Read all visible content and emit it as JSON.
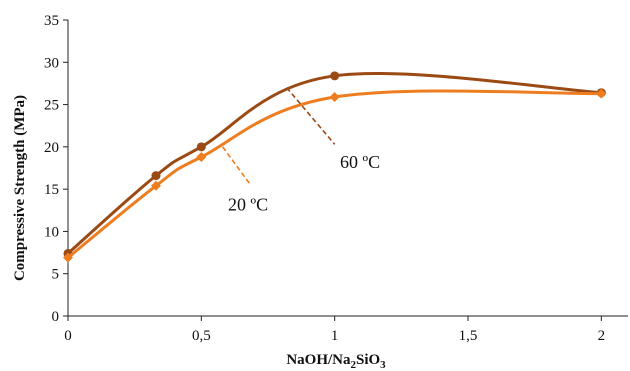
{
  "chart_data": {
    "type": "line",
    "xlabel": {
      "prefix": "NaOH/Na",
      "sub1": "2",
      "mid": "SiO",
      "sub2": "3"
    },
    "ylabel": "Compressive Strength (MPa)",
    "xlim": [
      0,
      2.1
    ],
    "ylim": [
      0,
      35
    ],
    "x_ticks": [
      0,
      0.5,
      1,
      1.5,
      2
    ],
    "x_tick_labels": [
      "0",
      "0,5",
      "1",
      "1,5",
      "2"
    ],
    "y_ticks": [
      0,
      5,
      10,
      15,
      20,
      25,
      30,
      35
    ],
    "y_tick_labels": [
      "0",
      "5",
      "10",
      "15",
      "20",
      "25",
      "30",
      "35"
    ],
    "grid": false,
    "series": [
      {
        "name": "60 ºC",
        "color": "#9b4a14",
        "marker": "circle",
        "x": [
          0,
          0.33,
          0.5,
          1,
          2
        ],
        "y": [
          7.4,
          16.6,
          20.0,
          28.4,
          26.4
        ],
        "label_x": 1.02,
        "label_y": 17.5,
        "leader": [
          [
            0.82,
            27.0
          ],
          [
            1.0,
            20.3
          ]
        ]
      },
      {
        "name": "20 ºC",
        "color": "#ee7d1f",
        "marker": "diamond",
        "x": [
          0,
          0.33,
          0.5,
          1,
          2
        ],
        "y": [
          6.9,
          15.4,
          18.8,
          25.9,
          26.3
        ],
        "label_x": 0.6,
        "label_y": 12.5,
        "leader": [
          [
            0.58,
            20.0
          ],
          [
            0.68,
            15.7
          ]
        ]
      }
    ]
  }
}
